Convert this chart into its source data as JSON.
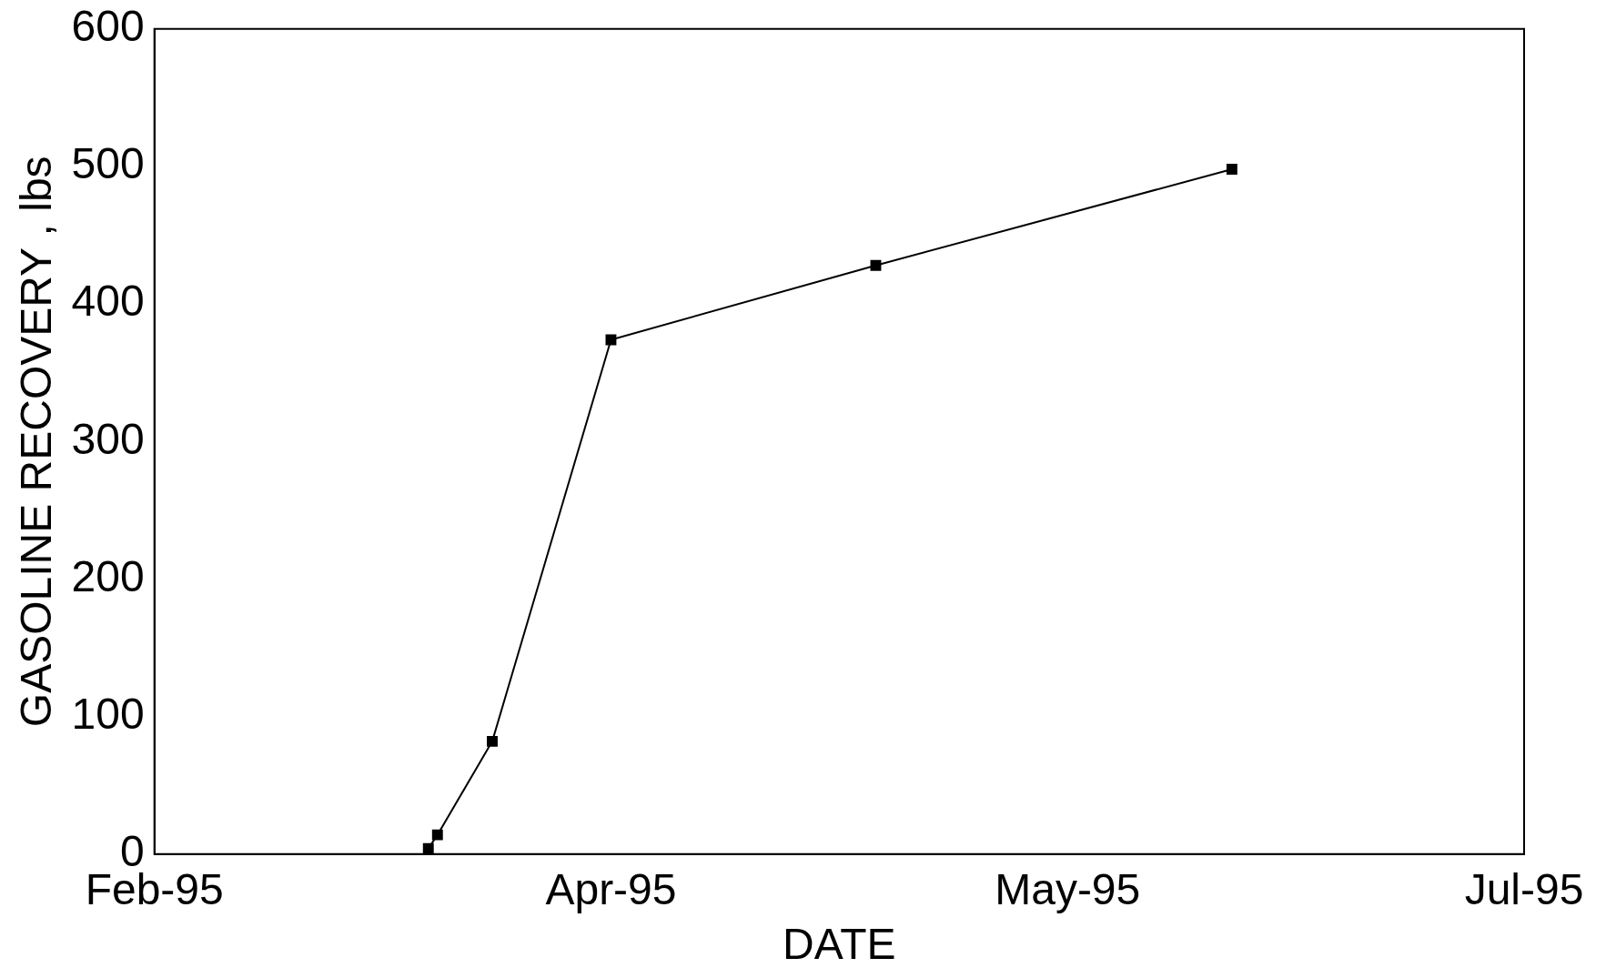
{
  "chart_data": {
    "type": "line",
    "xlabel": "DATE",
    "ylabel": "GASOLINE RECOVERY , lbs",
    "x": [
      "1995-03-12",
      "1995-03-13",
      "1995-03-19",
      "1995-04-01",
      "1995-04-30",
      "1995-06-08"
    ],
    "values": [
      4,
      14,
      82,
      374,
      428,
      498
    ],
    "color": "#000000",
    "marker": "square",
    "line_style": "solid",
    "xlim": [
      "1995-02-10",
      "1995-07-10"
    ],
    "xticks": [
      {
        "value": "1995-02-10",
        "label": "Feb-95"
      },
      {
        "value": "1995-04-01",
        "label": "Apr-95"
      },
      {
        "value": "1995-05-21",
        "label": "May-95"
      },
      {
        "value": "1995-07-10",
        "label": "Jul-95"
      }
    ],
    "ylim": [
      0,
      600
    ],
    "yticks": [
      0,
      100,
      200,
      300,
      400,
      500,
      600
    ],
    "grid": false,
    "legend": false
  }
}
